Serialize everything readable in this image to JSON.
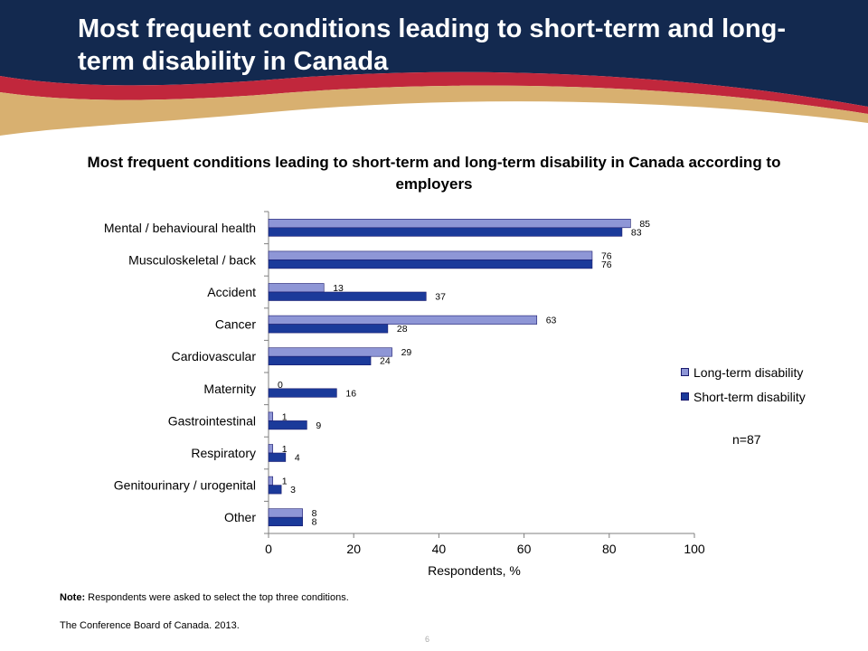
{
  "slide": {
    "title": "Most frequent conditions leading to short-term and long-term disability in Canada",
    "page_number": "6",
    "note_label": "Note:",
    "note_text": "Respondents were asked to select the top three conditions.",
    "source": "The Conference Board of Canada. 2013."
  },
  "colors": {
    "header_navy": "#13294f",
    "header_red": "#c1273c",
    "header_gold": "#d8b070",
    "long_term": "#8e96d6",
    "short_term": "#1b3a9a"
  },
  "chart_data": {
    "type": "bar",
    "orientation": "horizontal",
    "title": "Most frequent conditions leading to short-term and long-term disability in Canada according to employers",
    "xlabel": "Respondents, %",
    "ylabel": "",
    "xlim": [
      0,
      100
    ],
    "xticks": [
      0,
      20,
      40,
      60,
      80,
      100
    ],
    "grid": false,
    "legend_position": "right",
    "categories": [
      "Mental / behavioural health",
      "Musculoskeletal / back",
      "Accident",
      "Cancer",
      "Cardiovascular",
      "Maternity",
      "Gastrointestinal",
      "Respiratory",
      "Genitourinary / urogenital",
      "Other"
    ],
    "series": [
      {
        "name": "Long-term disability",
        "values": [
          85,
          76,
          13,
          63,
          29,
          0,
          1,
          1,
          1,
          8
        ]
      },
      {
        "name": "Short-term disability",
        "values": [
          83,
          76,
          37,
          28,
          24,
          16,
          9,
          4,
          3,
          8
        ]
      }
    ],
    "annotation": "n=87"
  }
}
